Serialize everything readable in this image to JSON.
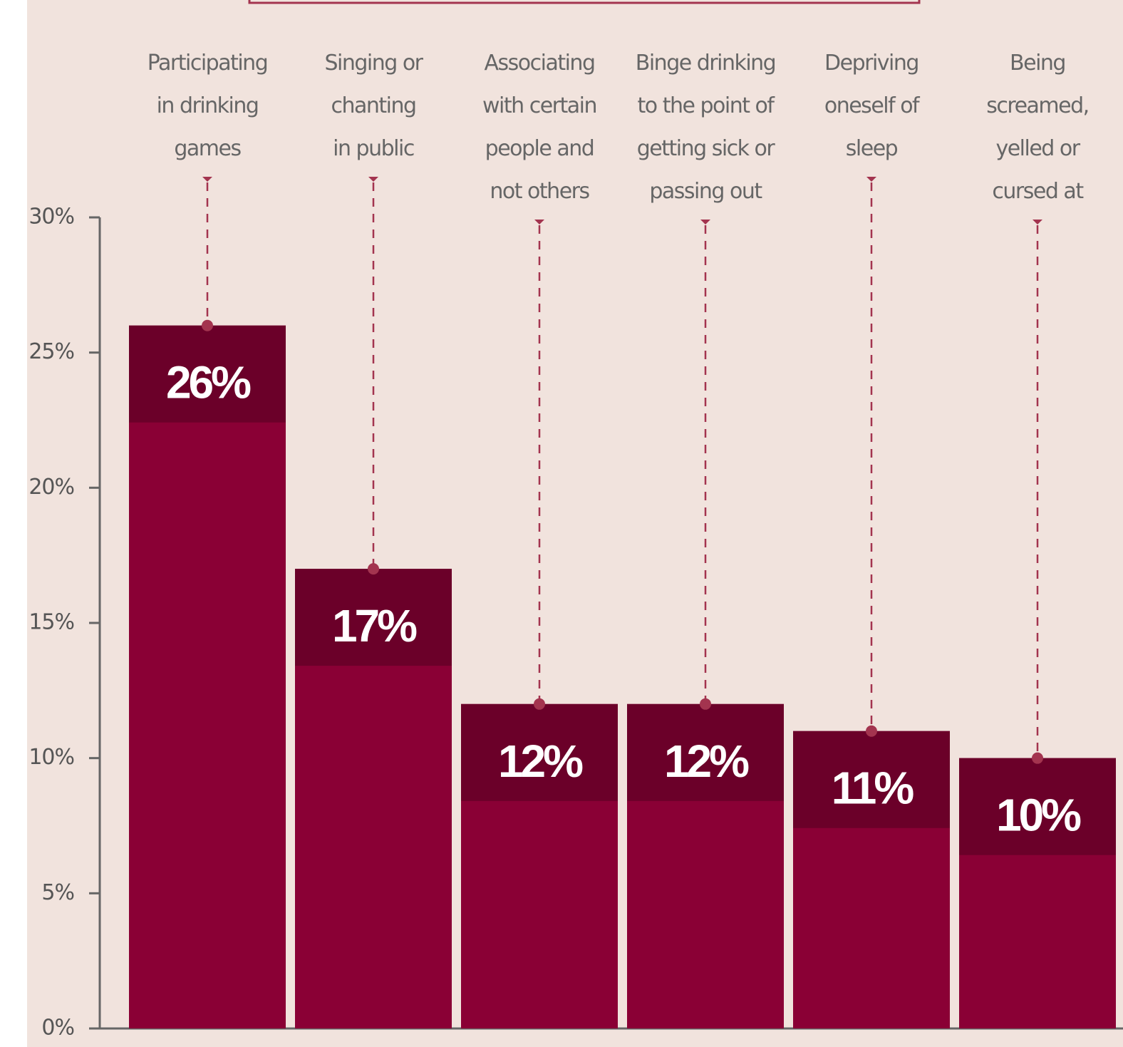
{
  "chart_data": {
    "type": "bar",
    "categories": [
      [
        "Participating",
        "in drinking",
        "games"
      ],
      [
        "Singing or",
        "chanting",
        "in public"
      ],
      [
        "Associating",
        "with certain",
        "people and",
        "not others"
      ],
      [
        "Binge drinking",
        "to the point of",
        "getting sick or",
        "passing out"
      ],
      [
        "Depriving",
        "oneself of",
        "sleep"
      ],
      [
        "Being",
        "screamed,",
        "yelled or",
        "cursed at"
      ]
    ],
    "values": [
      26,
      17,
      12,
      12,
      11,
      10
    ],
    "value_labels": [
      "26%",
      "17%",
      "12%",
      "12%",
      "11%",
      "10%"
    ],
    "color": "#8a0035",
    "ylim": [
      0,
      30
    ],
    "yticks": [
      {
        "value": 0,
        "label": "0%"
      },
      {
        "value": 5,
        "label": "5%"
      },
      {
        "value": 10,
        "label": "10%"
      },
      {
        "value": 15,
        "label": "15%"
      },
      {
        "value": 20,
        "label": "20%"
      },
      {
        "value": 25,
        "label": "25%"
      },
      {
        "value": 30,
        "label": "30%"
      }
    ]
  }
}
